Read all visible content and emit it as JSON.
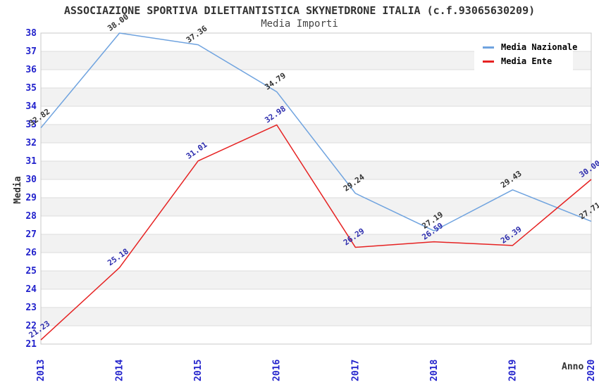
{
  "title": "ASSOCIAZIONE SPORTIVA DILETTANTISTICA SKYNETDRONE ITALIA (c.f.93065630209)",
  "subtitle": "Media Importi",
  "chart_data": {
    "type": "line",
    "categories": [
      "2013",
      "2014",
      "2015",
      "2016",
      "2017",
      "2018",
      "2019",
      "2020"
    ],
    "series": [
      {
        "name": "Media Nazionale",
        "values": [
          32.82,
          38.0,
          37.36,
          34.79,
          29.24,
          27.19,
          29.43,
          27.71
        ],
        "color": "#6fa3df",
        "label_color": "#333333"
      },
      {
        "name": "Media Ente",
        "values": [
          21.23,
          25.18,
          31.01,
          32.98,
          26.29,
          26.59,
          26.39,
          30.0
        ],
        "color": "#e62222",
        "label_color": "#2d2dad"
      }
    ],
    "xlabel": "Anno",
    "ylabel": "Media",
    "ylim": [
      21,
      38
    ],
    "y_tick_step": 1,
    "grid": "horizontal-bands",
    "legend_position": "top-right",
    "colors": {
      "axis_tick_text": "#2222cc",
      "band_fill": "#f2f2f2",
      "gridline": "#dcdcdc",
      "plot_border": "#c8c8c8"
    }
  }
}
